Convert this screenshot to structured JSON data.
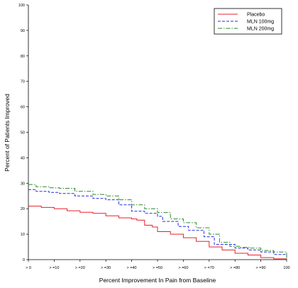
{
  "chart_data": {
    "type": "line",
    "title": "",
    "xlabel": "Percent Improvement In Pain from Baseline",
    "ylabel": "Percent of Patients Improved",
    "x_tick_labels": [
      "> 0",
      "> =10",
      "> =20",
      "> =30",
      "> =40",
      "> =50",
      "> =60",
      "> =70",
      "> =80",
      "> =90",
      "100"
    ],
    "x_tick_values": [
      0,
      10,
      20,
      30,
      40,
      50,
      60,
      70,
      80,
      90,
      100
    ],
    "xlim": [
      0,
      100
    ],
    "ylim": [
      0,
      100
    ],
    "y_ticks": [
      0,
      10,
      20,
      30,
      40,
      50,
      60,
      70,
      80,
      90,
      100
    ],
    "grid": false,
    "legend_position": "top-right",
    "series": [
      {
        "name": "Placebo",
        "color": "#e8202a",
        "dash": "solid",
        "points": [
          [
            0,
            21
          ],
          [
            5,
            20.5
          ],
          [
            10,
            20
          ],
          [
            15,
            19.2
          ],
          [
            20,
            18.6
          ],
          [
            25,
            18.2
          ],
          [
            30,
            17.2
          ],
          [
            35,
            16.4
          ],
          [
            40,
            16
          ],
          [
            42,
            15.5
          ],
          [
            45,
            13.5
          ],
          [
            48,
            12.8
          ],
          [
            50,
            11
          ],
          [
            55,
            10
          ],
          [
            60,
            8.6
          ],
          [
            65,
            7.2
          ],
          [
            70,
            5
          ],
          [
            75,
            3.8
          ],
          [
            80,
            2.5
          ],
          [
            85,
            1.8
          ],
          [
            90,
            0.8
          ],
          [
            95,
            0.3
          ],
          [
            100,
            0
          ]
        ]
      },
      {
        "name": "MLN 100mg",
        "color": "#2a2ae8",
        "dash": "dashed",
        "points": [
          [
            0,
            27.5
          ],
          [
            3,
            26.8
          ],
          [
            8,
            26.4
          ],
          [
            12,
            26
          ],
          [
            18,
            25
          ],
          [
            25,
            24
          ],
          [
            30,
            23.5
          ],
          [
            35,
            21.5
          ],
          [
            40,
            19
          ],
          [
            45,
            18.2
          ],
          [
            50,
            17
          ],
          [
            52,
            15
          ],
          [
            58,
            13
          ],
          [
            62,
            11.5
          ],
          [
            68,
            9
          ],
          [
            72,
            6
          ],
          [
            76,
            6
          ],
          [
            80,
            4.5
          ],
          [
            85,
            3.8
          ],
          [
            90,
            3
          ],
          [
            95,
            2
          ],
          [
            100,
            0
          ]
        ]
      },
      {
        "name": "MLN 200mg",
        "color": "#2a8a2a",
        "dash": "dashdot",
        "points": [
          [
            0,
            29.5
          ],
          [
            3,
            28.6
          ],
          [
            8,
            28.2
          ],
          [
            12,
            28
          ],
          [
            18,
            26.8
          ],
          [
            25,
            25.6
          ],
          [
            30,
            25
          ],
          [
            35,
            23.5
          ],
          [
            40,
            21.5
          ],
          [
            45,
            20
          ],
          [
            50,
            18.5
          ],
          [
            55,
            16
          ],
          [
            60,
            14.5
          ],
          [
            65,
            12.5
          ],
          [
            70,
            10
          ],
          [
            74,
            6.8
          ],
          [
            78,
            5.2
          ],
          [
            82,
            4.8
          ],
          [
            86,
            4.5
          ],
          [
            90,
            3.6
          ],
          [
            95,
            3
          ],
          [
            100,
            0
          ]
        ]
      }
    ]
  }
}
